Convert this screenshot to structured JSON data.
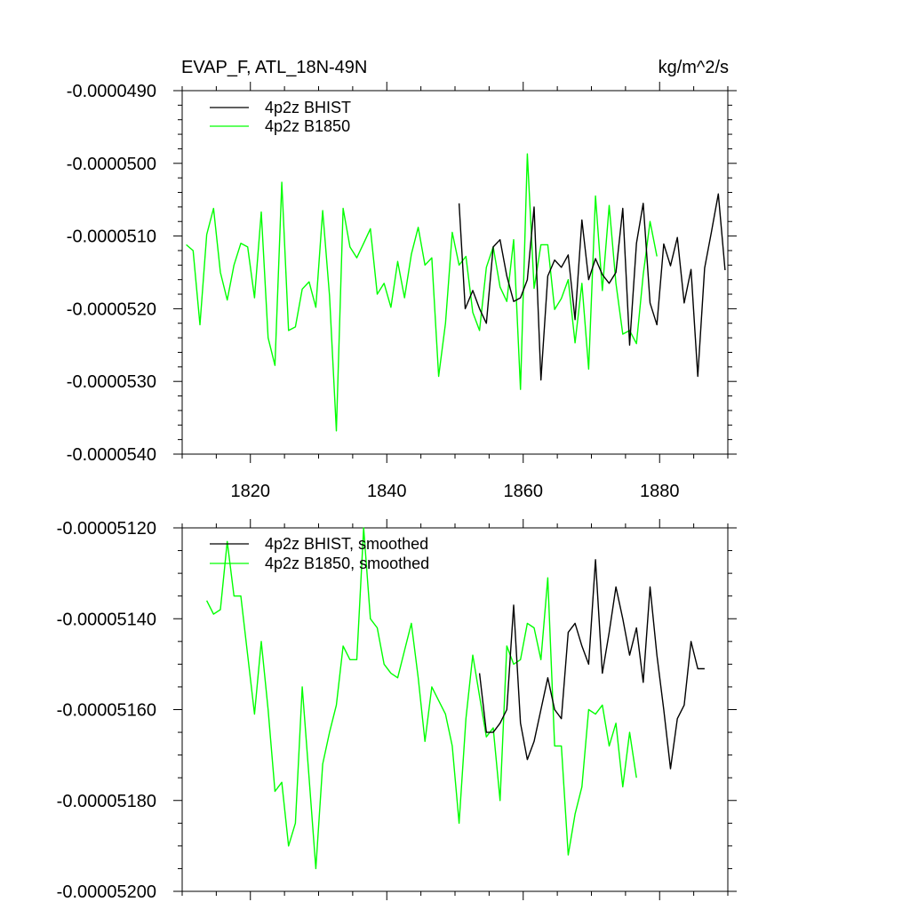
{
  "figure": {
    "title_left": "EVAP_F, ATL_18N-49N",
    "title_right": "kg/m^2/s"
  },
  "colors": {
    "bhist": "#000000",
    "b1850": "#00ff00",
    "axis": "#000000"
  },
  "chart_data": [
    {
      "type": "line",
      "title": "EVAP_F, ATL_18N-49N",
      "units": "kg/m^2/s",
      "xlim": [
        1810,
        1890
      ],
      "ylim": [
        -5.4e-05,
        -4.9e-05
      ],
      "x_ticks": [
        1820,
        1840,
        1860,
        1880
      ],
      "x_tick_labels": [
        "1820",
        "1840",
        "1860",
        "1880"
      ],
      "y_ticks": [
        -5.4e-05,
        -5.3e-05,
        -5.2e-05,
        -5.1e-05,
        -5e-05,
        -4.9e-05
      ],
      "y_tick_labels": [
        "-0.0000540",
        "-0.0000530",
        "-0.0000520",
        "-0.0000510",
        "-0.0000500",
        "-0.0000490"
      ],
      "legend_position": "top-left",
      "series": [
        {
          "name": "4p2z BHIST",
          "color": "#000000",
          "x": [
            1850.6,
            1851.5,
            1852.6,
            1853.6,
            1854.6,
            1855.6,
            1856.6,
            1857.6,
            1858.6,
            1859.6,
            1860.6,
            1861.6,
            1862.6,
            1863.6,
            1864.6,
            1865.6,
            1866.6,
            1867.6,
            1868.6,
            1869.6,
            1870.6,
            1871.6,
            1872.6,
            1873.6,
            1874.6,
            1875.6,
            1876.6,
            1877.6,
            1878.6,
            1879.6,
            1880.6,
            1881.6,
            1882.6,
            1883.6,
            1884.6,
            1885.6,
            1886.6,
            1887.6,
            1888.6,
            1889.6
          ],
          "y": [
            -5.055e-05,
            -5.2e-05,
            -5.175e-05,
            -5.2e-05,
            -5.22e-05,
            -5.115e-05,
            -5.105e-05,
            -5.155e-05,
            -5.19e-05,
            -5.185e-05,
            -5.16e-05,
            -5.06e-05,
            -5.298e-05,
            -5.155e-05,
            -5.133e-05,
            -5.143e-05,
            -5.126e-05,
            -5.215e-05,
            -5.078e-05,
            -5.16e-05,
            -5.131e-05,
            -5.153e-05,
            -5.165e-05,
            -5.15e-05,
            -5.062e-05,
            -5.25e-05,
            -5.11e-05,
            -5.055e-05,
            -5.192e-05,
            -5.222e-05,
            -5.111e-05,
            -5.141e-05,
            -5.102e-05,
            -5.192e-05,
            -5.146e-05,
            -5.293e-05,
            -5.144e-05,
            -5.094e-05,
            -5.042e-05,
            -5.147e-05
          ]
        },
        {
          "name": "4p2z B1850",
          "color": "#00ff00",
          "x": [
            1810.6,
            1811.6,
            1812.6,
            1813.6,
            1814.6,
            1815.6,
            1816.6,
            1817.6,
            1818.6,
            1819.6,
            1820.6,
            1821.6,
            1822.6,
            1823.6,
            1824.6,
            1825.6,
            1826.6,
            1827.6,
            1828.6,
            1829.6,
            1830.6,
            1831.6,
            1832.6,
            1833.6,
            1834.6,
            1835.6,
            1836.6,
            1837.6,
            1838.6,
            1839.6,
            1840.6,
            1841.6,
            1842.6,
            1843.6,
            1844.6,
            1845.6,
            1846.6,
            1847.6,
            1848.6,
            1849.6,
            1850.6,
            1851.6,
            1852.6,
            1853.6,
            1854.6,
            1855.6,
            1856.6,
            1857.6,
            1858.6,
            1859.6,
            1860.6,
            1861.6,
            1862.6,
            1863.6,
            1864.6,
            1865.6,
            1866.6,
            1867.6,
            1868.6,
            1869.6,
            1870.6,
            1871.6,
            1872.6,
            1873.6,
            1874.6,
            1875.6,
            1876.6,
            1877.6,
            1878.6,
            1879.6
          ],
          "y": [
            -5.112e-05,
            -5.12e-05,
            -5.222e-05,
            -5.098e-05,
            -5.062e-05,
            -5.15e-05,
            -5.188e-05,
            -5.14e-05,
            -5.11e-05,
            -5.115e-05,
            -5.185e-05,
            -5.067e-05,
            -5.24e-05,
            -5.278e-05,
            -5.026e-05,
            -5.23e-05,
            -5.225e-05,
            -5.173e-05,
            -5.163e-05,
            -5.198e-05,
            -5.065e-05,
            -5.182e-05,
            -5.368e-05,
            -5.062e-05,
            -5.115e-05,
            -5.13e-05,
            -5.11e-05,
            -5.09e-05,
            -5.18e-05,
            -5.165e-05,
            -5.198e-05,
            -5.135e-05,
            -5.185e-05,
            -5.125e-05,
            -5.088e-05,
            -5.14e-05,
            -5.13e-05,
            -5.293e-05,
            -5.22e-05,
            -5.095e-05,
            -5.14e-05,
            -5.128e-05,
            -5.205e-05,
            -5.23e-05,
            -5.143e-05,
            -5.115e-05,
            -5.17e-05,
            -5.19e-05,
            -5.105e-05,
            -5.311e-05,
            -4.987e-05,
            -5.172e-05,
            -5.112e-05,
            -5.112e-05,
            -5.201e-05,
            -5.186e-05,
            -5.16e-05,
            -5.247e-05,
            -5.165e-05,
            -5.283e-05,
            -5.045e-05,
            -5.175e-05,
            -5.058e-05,
            -5.165e-05,
            -5.235e-05,
            -5.23e-05,
            -5.248e-05,
            -5.153e-05,
            -5.08e-05,
            -5.128e-05
          ]
        }
      ]
    },
    {
      "type": "line",
      "xlim": [
        1810,
        1890
      ],
      "ylim": [
        -5.2e-05,
        -5.12e-05
      ],
      "x_ticks": [
        1820,
        1840,
        1860,
        1880
      ],
      "y_ticks": [
        -5.2e-05,
        -5.18e-05,
        -5.16e-05,
        -5.14e-05,
        -5.12e-05
      ],
      "y_tick_labels": [
        "-0.00005200",
        "-0.00005180",
        "-0.00005160",
        "-0.00005140",
        "-0.00005120"
      ],
      "legend_position": "top-left",
      "series": [
        {
          "name": "4p2z BHIST, smoothed",
          "color": "#000000",
          "x": [
            1853.6,
            1854.6,
            1855.6,
            1856.6,
            1857.6,
            1858.6,
            1859.6,
            1860.6,
            1861.6,
            1862.6,
            1863.6,
            1864.6,
            1865.6,
            1866.6,
            1867.6,
            1868.6,
            1869.6,
            1870.6,
            1871.6,
            1872.6,
            1873.6,
            1874.6,
            1875.6,
            1876.6,
            1877.6,
            1878.6,
            1879.6,
            1880.6,
            1881.6,
            1882.6,
            1883.6,
            1884.6,
            1885.6,
            1886.6
          ],
          "y": [
            -5.152e-05,
            -5.165e-05,
            -5.165e-05,
            -5.163e-05,
            -5.16e-05,
            -5.137e-05,
            -5.163e-05,
            -5.171e-05,
            -5.167e-05,
            -5.16e-05,
            -5.153e-05,
            -5.16e-05,
            -5.162e-05,
            -5.143e-05,
            -5.141e-05,
            -5.146e-05,
            -5.15e-05,
            -5.127e-05,
            -5.152e-05,
            -5.143e-05,
            -5.133e-05,
            -5.14e-05,
            -5.148e-05,
            -5.142e-05,
            -5.154e-05,
            -5.133e-05,
            -5.148e-05,
            -5.16e-05,
            -5.173e-05,
            -5.162e-05,
            -5.159e-05,
            -5.145e-05,
            -5.151e-05,
            -5.151e-05
          ]
        },
        {
          "name": "4p2z B1850, smoothed",
          "color": "#00ff00",
          "x": [
            1813.6,
            1814.6,
            1815.6,
            1816.6,
            1817.6,
            1818.6,
            1819.6,
            1820.6,
            1821.6,
            1822.6,
            1823.6,
            1824.6,
            1825.6,
            1826.6,
            1827.6,
            1828.6,
            1829.6,
            1830.6,
            1831.6,
            1832.6,
            1833.6,
            1834.6,
            1835.6,
            1836.6,
            1837.6,
            1838.6,
            1839.6,
            1840.6,
            1841.6,
            1842.6,
            1843.6,
            1844.6,
            1845.6,
            1846.6,
            1847.6,
            1848.6,
            1849.6,
            1850.6,
            1851.6,
            1852.6,
            1853.6,
            1854.6,
            1855.6,
            1856.6,
            1857.6,
            1858.6,
            1859.6,
            1860.6,
            1861.6,
            1862.6,
            1863.6,
            1864.6,
            1865.6,
            1866.6,
            1867.6,
            1868.6,
            1869.6,
            1870.6,
            1871.6,
            1872.6,
            1873.6,
            1874.6,
            1875.6,
            1876.6
          ],
          "y": [
            -5.136e-05,
            -5.139e-05,
            -5.138e-05,
            -5.123e-05,
            -5.135e-05,
            -5.135e-05,
            -5.148e-05,
            -5.161e-05,
            -5.145e-05,
            -5.16e-05,
            -5.178e-05,
            -5.176e-05,
            -5.19e-05,
            -5.185e-05,
            -5.155e-05,
            -5.175e-05,
            -5.195e-05,
            -5.172e-05,
            -5.165e-05,
            -5.159e-05,
            -5.146e-05,
            -5.149e-05,
            -5.149e-05,
            -5.12e-05,
            -5.14e-05,
            -5.142e-05,
            -5.15e-05,
            -5.152e-05,
            -5.153e-05,
            -5.147e-05,
            -5.141e-05,
            -5.153e-05,
            -5.167e-05,
            -5.155e-05,
            -5.158e-05,
            -5.161e-05,
            -5.168e-05,
            -5.185e-05,
            -5.162e-05,
            -5.148e-05,
            -5.157e-05,
            -5.166e-05,
            -5.164e-05,
            -5.18e-05,
            -5.146e-05,
            -5.15e-05,
            -5.149e-05,
            -5.141e-05,
            -5.142e-05,
            -5.149e-05,
            -5.131e-05,
            -5.168e-05,
            -5.168e-05,
            -5.192e-05,
            -5.183e-05,
            -5.177e-05,
            -5.16e-05,
            -5.161e-05,
            -5.159e-05,
            -5.168e-05,
            -5.163e-05,
            -5.177e-05,
            -5.165e-05,
            -5.175e-05
          ]
        }
      ]
    }
  ]
}
